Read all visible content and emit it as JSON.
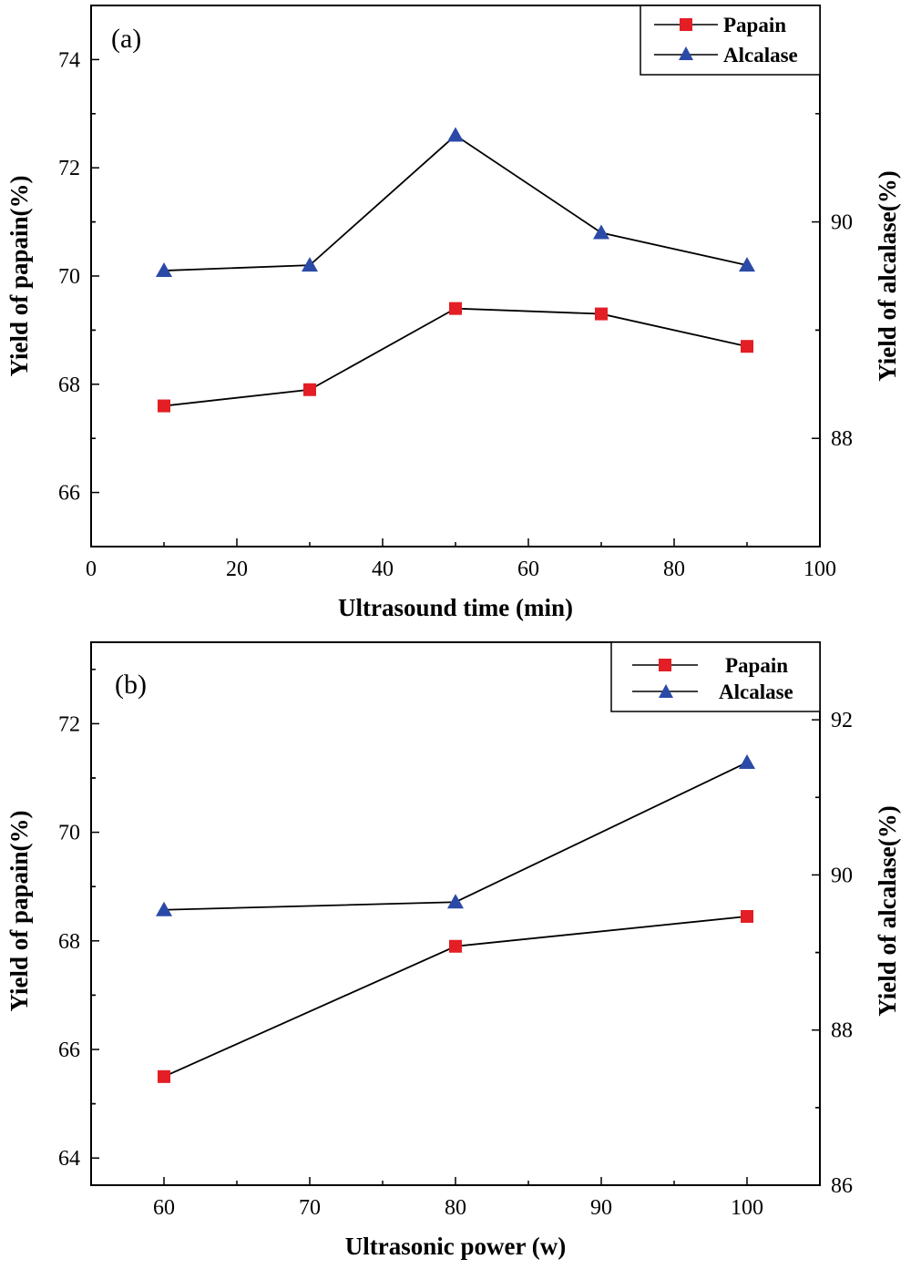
{
  "chart_data": [
    {
      "type": "line",
      "panel_label": "(a)",
      "xlabel": "Ultrasound time (min)",
      "ylabel_left": "Yield of papain(%)",
      "ylabel_right": "Yield of alcalase(%)",
      "xlim": [
        0,
        100
      ],
      "ylim_left": [
        65,
        75
      ],
      "ylim_right": [
        87,
        92
      ],
      "xticks": [
        0,
        20,
        40,
        60,
        80,
        100
      ],
      "yticks_left": [
        66,
        68,
        70,
        72,
        74
      ],
      "yticks_right": [
        88,
        90
      ],
      "grid": false,
      "legend_position": "top-right",
      "x": [
        10,
        30,
        50,
        70,
        90
      ],
      "series": [
        {
          "name": "Papain",
          "axis": "left",
          "marker": "square",
          "color": "#e31e24",
          "values": [
            67.6,
            67.9,
            69.4,
            69.3,
            68.7
          ]
        },
        {
          "name": "Alcalase",
          "axis": "right",
          "marker": "triangle",
          "color": "#2b4aa8",
          "values": [
            89.55,
            89.6,
            90.8,
            89.9,
            89.6
          ]
        }
      ]
    },
    {
      "type": "line",
      "panel_label": "(b)",
      "xlabel": "Ultrasonic power (w)",
      "ylabel_left": "Yield of papain(%)",
      "ylabel_right": "Yield of alcalase(%)",
      "xlim": [
        55,
        105
      ],
      "ylim_left": [
        63.5,
        73.5
      ],
      "ylim_right": [
        86,
        93
      ],
      "xticks": [
        60,
        70,
        80,
        90,
        100
      ],
      "yticks_left": [
        64,
        66,
        68,
        70,
        72
      ],
      "yticks_right": [
        86,
        88,
        90,
        92
      ],
      "grid": false,
      "legend_position": "top-right",
      "x": [
        60,
        80,
        100
      ],
      "series": [
        {
          "name": "Papain",
          "axis": "left",
          "marker": "square",
          "color": "#e31e24",
          "values": [
            65.5,
            67.9,
            68.45
          ]
        },
        {
          "name": "Alcalase",
          "axis": "right",
          "marker": "triangle",
          "color": "#2b4aa8",
          "values": [
            89.55,
            89.65,
            91.45
          ]
        }
      ]
    }
  ]
}
